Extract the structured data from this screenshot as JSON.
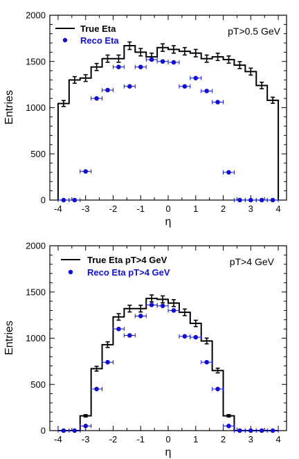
{
  "chart_data": [
    {
      "type": "histogram",
      "annotation": "pT>0.5 GeV",
      "xlabel": "η",
      "ylabel": "Entries",
      "xlim": [
        -4.3,
        4.3
      ],
      "ylim": [
        0,
        2000
      ],
      "xticks": [
        -4,
        -3,
        -2,
        -1,
        0,
        1,
        2,
        3,
        4
      ],
      "yticks": [
        0,
        500,
        1000,
        1500,
        2000
      ],
      "legend_position": "top-left",
      "bin_edges": [
        -4.0,
        -3.6,
        -3.2,
        -2.8,
        -2.4,
        -2.0,
        -1.6,
        -1.2,
        -0.8,
        -0.4,
        0.0,
        0.4,
        0.8,
        1.2,
        1.6,
        2.0,
        2.4,
        2.8,
        3.2,
        3.6,
        4.0
      ],
      "series": [
        {
          "name": "True Eta",
          "style": "step",
          "color": "#000000",
          "values": [
            1045,
            1300,
            1320,
            1440,
            1530,
            1530,
            1670,
            1600,
            1550,
            1650,
            1630,
            1610,
            1590,
            1530,
            1550,
            1520,
            1460,
            1390,
            1240,
            1080
          ]
        },
        {
          "name": "Reco Eta",
          "style": "points",
          "color": "#1010d0",
          "values": [
            0,
            0,
            310,
            1100,
            1190,
            1440,
            1230,
            1440,
            1520,
            1500,
            1490,
            1230,
            1320,
            1180,
            1060,
            300,
            0,
            0,
            0,
            0
          ]
        }
      ]
    },
    {
      "type": "histogram",
      "annotation": "pT>4 GeV",
      "xlabel": "η",
      "ylabel": "Entries",
      "xlim": [
        -4.3,
        4.3
      ],
      "ylim": [
        0,
        2000
      ],
      "xticks": [
        -4,
        -3,
        -2,
        -1,
        0,
        1,
        2,
        3,
        4
      ],
      "yticks": [
        0,
        500,
        1000,
        1500,
        2000
      ],
      "legend_position": "top-left",
      "bin_edges": [
        -4.0,
        -3.6,
        -3.2,
        -2.8,
        -2.4,
        -2.0,
        -1.6,
        -1.2,
        -0.8,
        -0.4,
        0.0,
        0.4,
        0.8,
        1.2,
        1.6,
        2.0,
        2.4,
        2.8,
        3.2,
        3.6,
        4.0
      ],
      "series": [
        {
          "name": "True Eta pT>4 GeV",
          "style": "step",
          "color": "#000000",
          "values": [
            0,
            0,
            160,
            670,
            930,
            1230,
            1320,
            1320,
            1430,
            1420,
            1380,
            1280,
            1160,
            970,
            650,
            160,
            0,
            0,
            0,
            0
          ]
        },
        {
          "name": "Reco Eta pT>4 GeV",
          "style": "points",
          "color": "#1010d0",
          "values": [
            0,
            0,
            50,
            450,
            740,
            1100,
            1030,
            1240,
            1360,
            1350,
            1300,
            1020,
            1010,
            740,
            450,
            50,
            0,
            0,
            0,
            0
          ]
        }
      ]
    }
  ]
}
